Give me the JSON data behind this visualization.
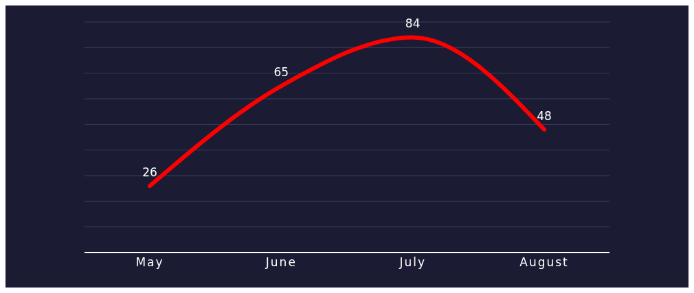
{
  "chart_data": {
    "type": "line",
    "categories": [
      "May",
      "June",
      "July",
      "August"
    ],
    "series": [
      {
        "color": "#ff0000",
        "values": [
          26,
          65,
          84,
          48
        ]
      }
    ],
    "ylim": [
      0,
      90
    ],
    "yticks": [
      {
        "value": 0,
        "label": null
      },
      {
        "value": 10,
        "label": null
      },
      {
        "value": 20,
        "label": null
      },
      {
        "value": 30,
        "label": null
      },
      {
        "value": 40,
        "label": null
      },
      {
        "value": 50,
        "label": null
      },
      {
        "value": 60,
        "label": null
      },
      {
        "value": 70,
        "label": null
      },
      {
        "value": 80,
        "label": null
      },
      {
        "value": 90,
        "label": null
      }
    ],
    "tick_labels": "x",
    "grid": "y",
    "data_labels": true,
    "marker": "none",
    "line_style": "solid",
    "legend": false
  }
}
